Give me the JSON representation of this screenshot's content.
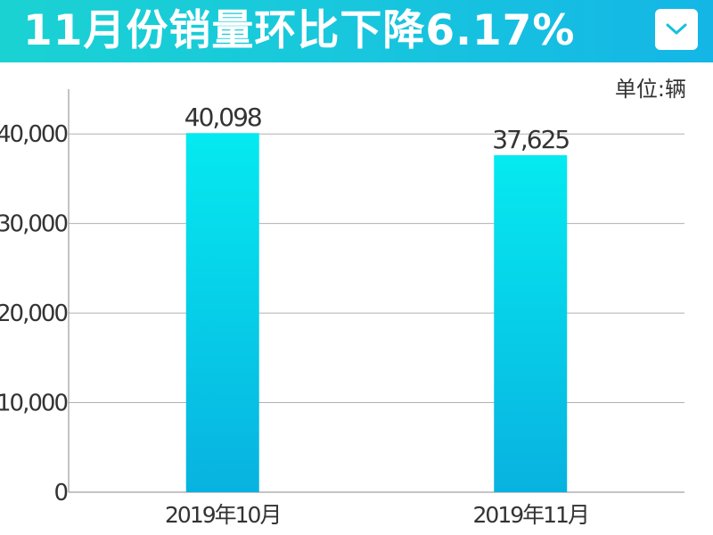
{
  "header": {
    "title": "11月份销量环比下降6.17%",
    "dropdown_icon": "chevron-down-icon",
    "background_color": "#1ccbd8"
  },
  "unit_label": "单位:辆",
  "chart_data": {
    "type": "bar",
    "categories": [
      "2019年10月",
      "2019年11月"
    ],
    "values": [
      40098,
      37625
    ],
    "value_labels": [
      "40,098",
      "37,625"
    ],
    "title": "",
    "xlabel": "",
    "ylabel": "",
    "ylim": [
      0,
      45000
    ],
    "yticks": [
      0,
      10000,
      20000,
      30000,
      40000
    ],
    "ytick_labels": [
      "0",
      "10,000",
      "20,000",
      "30,000",
      "40,000"
    ],
    "grid": true,
    "bar_color_top": "#05eaf0",
    "bar_color_bottom": "#08b2e0",
    "grid_color": "#b0b0b0"
  }
}
